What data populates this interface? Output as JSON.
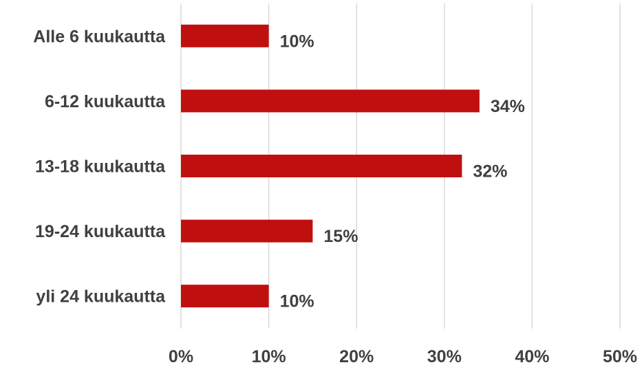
{
  "chart_data": {
    "type": "bar",
    "orientation": "horizontal",
    "categories": [
      "Alle 6 kuukautta",
      "6-12 kuukautta",
      "13-18 kuukautta",
      "19-24 kuukautta",
      "yli 24 kuukautta"
    ],
    "values": [
      10,
      34,
      32,
      15,
      10
    ],
    "data_labels": [
      "10%",
      "34%",
      "32%",
      "15%",
      "10%"
    ],
    "xlim": [
      0,
      50
    ],
    "x_ticks": [
      0,
      10,
      20,
      30,
      40,
      50
    ],
    "x_tick_labels": [
      "0%",
      "10%",
      "20%",
      "30%",
      "40%",
      "50%"
    ],
    "grid": true,
    "legend": "none",
    "bar_color": "#c00f0f",
    "title": "",
    "xlabel": "",
    "ylabel": ""
  }
}
